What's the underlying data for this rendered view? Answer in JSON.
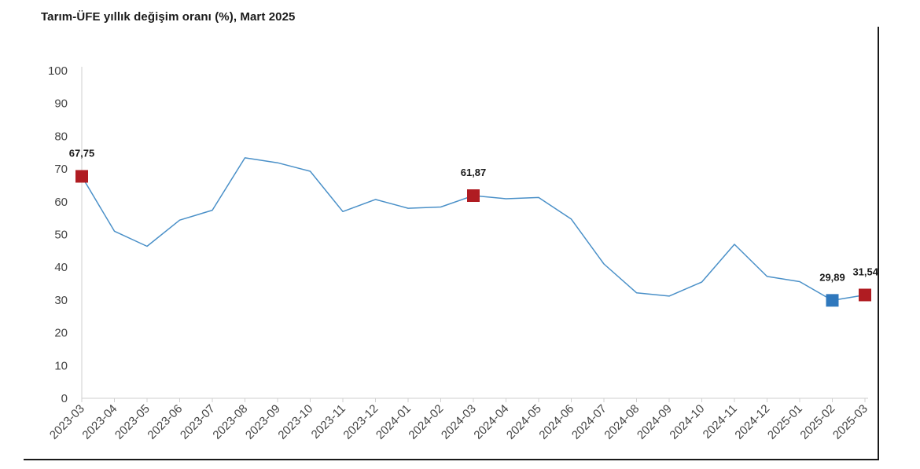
{
  "colors": {
    "line": "#4a90c8",
    "marker_red": "#b01c22",
    "marker_blue": "#2f78bd",
    "axis": "#cfcfcf",
    "text": "#444444"
  },
  "chart_data": {
    "type": "line",
    "title": "Tarım-ÜFE yıllık değişim oranı (%), Mart 2025",
    "xlabel": "",
    "ylabel": "",
    "ylim": [
      0,
      100
    ],
    "yticks": [
      0,
      10,
      20,
      30,
      40,
      50,
      60,
      70,
      80,
      90,
      100
    ],
    "grid": false,
    "categories": [
      "2023-03",
      "2023-04",
      "2023-05",
      "2023-06",
      "2023-07",
      "2023-08",
      "2023-09",
      "2023-10",
      "2023-11",
      "2023-12",
      "2024-01",
      "2024-02",
      "2024-03",
      "2024-04",
      "2024-05",
      "2024-06",
      "2024-07",
      "2024-08",
      "2024-09",
      "2024-10",
      "2024-11",
      "2024-12",
      "2025-01",
      "2025-02",
      "2025-03"
    ],
    "series": [
      {
        "values": [
          67.75,
          51.0,
          46.4,
          54.4,
          57.4,
          73.4,
          71.9,
          69.3,
          57.0,
          60.7,
          58.0,
          58.4,
          61.87,
          60.9,
          61.3,
          54.7,
          41.0,
          32.2,
          31.2,
          35.5,
          47.0,
          37.2,
          35.6,
          29.89,
          31.54
        ]
      }
    ],
    "highlighted_points": [
      {
        "index": 0,
        "label": "67,75",
        "color": "red"
      },
      {
        "index": 12,
        "label": "61,87",
        "color": "red"
      },
      {
        "index": 23,
        "label": "29,89",
        "color": "blue"
      },
      {
        "index": 24,
        "label": "31,54",
        "color": "red"
      }
    ]
  }
}
